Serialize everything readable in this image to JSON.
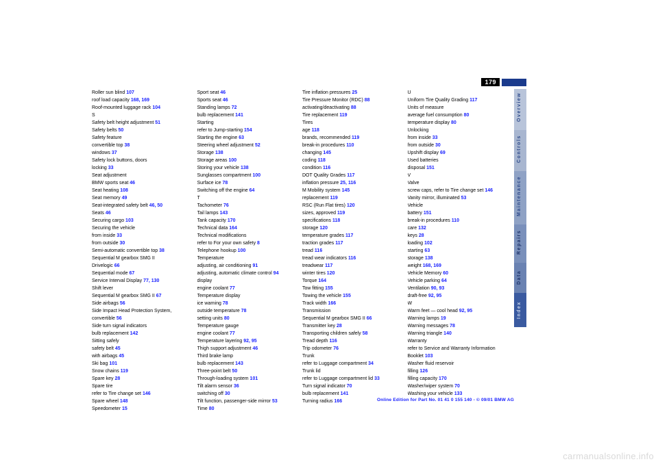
{
  "page_number": "179",
  "footer": "Online Edition for Part No. 01 41 0 155 140 - © 09/01 BMW AG",
  "watermark": "carmanualsonline.info",
  "tabs": [
    {
      "label": "Overview",
      "cls": "t-over"
    },
    {
      "label": "Controls",
      "cls": "t-ctrl"
    },
    {
      "label": "Maintenance",
      "cls": "t-maint"
    },
    {
      "label": "Repairs",
      "cls": "t-rep"
    },
    {
      "label": "Data",
      "cls": "t-data"
    },
    {
      "label": "Index",
      "cls": "t-idx"
    }
  ],
  "columns": [
    [
      {
        "l": "Roller sun blind",
        "n": "107"
      },
      {
        "l": "roof load capacity",
        "n": "168, 169"
      },
      {
        "l": "Roof-mounted luggage rack",
        "n": "104"
      },
      {
        "l": "",
        "n": ""
      },
      {
        "l": "S",
        "n": ""
      },
      {
        "l": "Safety belt height adjustment",
        "n": "51"
      },
      {
        "l": "Safety belts",
        "n": "50"
      },
      {
        "l": "Safety feature",
        "n": ""
      },
      {
        "l": "    convertible top",
        "n": "38"
      },
      {
        "l": "    windows",
        "n": "37"
      },
      {
        "l": "Safety lock buttons, doors",
        "n": ""
      },
      {
        "l": "    locking",
        "n": "33"
      },
      {
        "l": "Seat adjustment",
        "n": ""
      },
      {
        "l": "    BMW sports seat",
        "n": "46"
      },
      {
        "l": "Seat heating",
        "n": "108"
      },
      {
        "l": "Seat memory",
        "n": "49"
      },
      {
        "l": "Seat-integrated safety belt",
        "n": "46, 50"
      },
      {
        "l": "Seats",
        "n": "46"
      },
      {
        "l": "Securing cargo",
        "n": "103"
      },
      {
        "l": "Securing the vehicle",
        "n": ""
      },
      {
        "l": "    from inside",
        "n": "33"
      },
      {
        "l": "    from outside",
        "n": "30"
      },
      {
        "l": "Semi-automatic convertible top",
        "n": "38"
      },
      {
        "l": "Sequential M gearbox SMG II",
        "n": ""
      },
      {
        "l": "    Drivelogic",
        "n": "66"
      },
      {
        "l": "Sequential mode",
        "n": "67"
      },
      {
        "l": "Service Interval Display",
        "n": "77, 130"
      },
      {
        "l": "Shift lever",
        "n": ""
      },
      {
        "l": "    Sequential M gearbox SMG II",
        "n": "67"
      },
      {
        "l": "Side airbags",
        "n": "56"
      },
      {
        "l": "Side Impact Head Protection System, convertible",
        "n": "56"
      },
      {
        "l": "Side turn signal indicators",
        "n": ""
      },
      {
        "l": "    bulb replacement",
        "n": "142"
      },
      {
        "l": "Sitting safely",
        "n": ""
      },
      {
        "l": "    safety belt",
        "n": "45"
      },
      {
        "l": "    with airbags",
        "n": "45"
      },
      {
        "l": "Ski bag",
        "n": "101"
      },
      {
        "l": "Snow chains",
        "n": "119"
      },
      {
        "l": "Spare key",
        "n": "28"
      },
      {
        "l": "Spare tire",
        "n": ""
      },
      {
        "l": "    refer to Tire change set",
        "n": "146"
      },
      {
        "l": "Spare wheel",
        "n": "148"
      },
      {
        "l": "Speedometer",
        "n": "15"
      }
    ],
    [
      {
        "l": "Sport seat",
        "n": "46"
      },
      {
        "l": "Sports seat",
        "n": "46"
      },
      {
        "l": "Standing lamps",
        "n": "72"
      },
      {
        "l": "    bulb replacement",
        "n": "141"
      },
      {
        "l": "Starting",
        "n": ""
      },
      {
        "l": "    refer to Jump-starting",
        "n": "154"
      },
      {
        "l": "Starting the engine",
        "n": "63"
      },
      {
        "l": "Steering wheel adjustment",
        "n": "52"
      },
      {
        "l": "Storage",
        "n": "138"
      },
      {
        "l": "Storage areas",
        "n": "100"
      },
      {
        "l": "Storing your vehicle",
        "n": "138"
      },
      {
        "l": "Sunglasses compartment",
        "n": "100"
      },
      {
        "l": "Surface ice",
        "n": "78"
      },
      {
        "l": "Switching off the engine",
        "n": "64"
      },
      {
        "l": "",
        "n": ""
      },
      {
        "l": "T",
        "n": ""
      },
      {
        "l": "Tachometer",
        "n": "76"
      },
      {
        "l": "Tail lamps",
        "n": "143"
      },
      {
        "l": "Tank capacity",
        "n": "170"
      },
      {
        "l": "Technical data",
        "n": "164"
      },
      {
        "l": "Technical modifications",
        "n": ""
      },
      {
        "l": "    refer to For your own safety",
        "n": "8"
      },
      {
        "l": "Telephone hookup",
        "n": "100"
      },
      {
        "l": "Temperature",
        "n": ""
      },
      {
        "l": "    adjusting, air conditioning",
        "n": "91"
      },
      {
        "l": "    adjusting, automatic climate control",
        "n": "94"
      },
      {
        "l": "    display",
        "n": ""
      },
      {
        "l": "    engine coolant",
        "n": "77"
      },
      {
        "l": "Temperature display",
        "n": ""
      },
      {
        "l": "    ice warning",
        "n": "78"
      },
      {
        "l": "    outside temperature",
        "n": "78"
      },
      {
        "l": "    setting units",
        "n": "80"
      },
      {
        "l": "Temperature gauge",
        "n": ""
      },
      {
        "l": "    engine coolant",
        "n": "77"
      },
      {
        "l": "Temperature layering",
        "n": "92, 95"
      },
      {
        "l": "Thigh support adjustment",
        "n": "46"
      },
      {
        "l": "Third brake lamp",
        "n": ""
      },
      {
        "l": "    bulb replacement",
        "n": "143"
      },
      {
        "l": "Three-point belt",
        "n": "50"
      },
      {
        "l": "Through-loading system",
        "n": "101"
      },
      {
        "l": "Tilt alarm sensor",
        "n": "36"
      },
      {
        "l": "    switching off",
        "n": "30"
      },
      {
        "l": "Tilt function, passenger-side mirror",
        "n": "53"
      },
      {
        "l": "Time",
        "n": "80"
      }
    ],
    [
      {
        "l": "Tire inflation pressures",
        "n": "25"
      },
      {
        "l": "Tire Pressure Monitor (RDC)",
        "n": "88"
      },
      {
        "l": "    activating/deactivating",
        "n": "88"
      },
      {
        "l": "Tire replacement",
        "n": "119"
      },
      {
        "l": "Tires",
        "n": ""
      },
      {
        "l": "    age",
        "n": "118"
      },
      {
        "l": "    brands, recommended",
        "n": "119"
      },
      {
        "l": "    break-in procedures",
        "n": "110"
      },
      {
        "l": "    changing",
        "n": "145"
      },
      {
        "l": "    coding",
        "n": "118"
      },
      {
        "l": "    condition",
        "n": "116"
      },
      {
        "l": "    DOT Quality Grades",
        "n": "117"
      },
      {
        "l": "    inflation pressure",
        "n": "25, 116"
      },
      {
        "l": "    M Mobility system",
        "n": "145"
      },
      {
        "l": "    replacement",
        "n": "119"
      },
      {
        "l": "    RSC (Run Flat tires)",
        "n": "120"
      },
      {
        "l": "    sizes, approved",
        "n": "119"
      },
      {
        "l": "    specifications",
        "n": "118"
      },
      {
        "l": "    storage",
        "n": "120"
      },
      {
        "l": "    temperature grades",
        "n": "117"
      },
      {
        "l": "    traction grades",
        "n": "117"
      },
      {
        "l": "    tread",
        "n": "116"
      },
      {
        "l": "    tread wear indicators",
        "n": "116"
      },
      {
        "l": "    treadwear",
        "n": "117"
      },
      {
        "l": "    winter tires",
        "n": "120"
      },
      {
        "l": "Torque",
        "n": "164"
      },
      {
        "l": "Tow fitting",
        "n": "155"
      },
      {
        "l": "Towing the vehicle",
        "n": "155"
      },
      {
        "l": "Track width",
        "n": "166"
      },
      {
        "l": "Transmission",
        "n": ""
      },
      {
        "l": "    Sequential M gearbox SMG II",
        "n": "66"
      },
      {
        "l": "Transmitter key",
        "n": "28"
      },
      {
        "l": "Transporting children safely",
        "n": "58"
      },
      {
        "l": "Tread depth",
        "n": "116"
      },
      {
        "l": "Trip odometer",
        "n": "76"
      },
      {
        "l": "Trunk",
        "n": ""
      },
      {
        "l": "    refer to Luggage compartment",
        "n": "34"
      },
      {
        "l": "Trunk lid",
        "n": ""
      },
      {
        "l": "    refer to Luggage compartment lid",
        "n": "33"
      },
      {
        "l": "Turn signal indicator",
        "n": "70"
      },
      {
        "l": "    bulb replacement",
        "n": "141"
      },
      {
        "l": "Turning radius",
        "n": "166"
      }
    ],
    [
      {
        "l": "U",
        "n": ""
      },
      {
        "l": "Uniform Tire Quality Grading",
        "n": "117"
      },
      {
        "l": "Units of measure",
        "n": ""
      },
      {
        "l": "    average fuel consumption",
        "n": "80"
      },
      {
        "l": "    temperature display",
        "n": "80"
      },
      {
        "l": "Unlocking",
        "n": ""
      },
      {
        "l": "    from inside",
        "n": "33"
      },
      {
        "l": "    from outside",
        "n": "30"
      },
      {
        "l": "Upshift display",
        "n": "69"
      },
      {
        "l": "Used batteries",
        "n": ""
      },
      {
        "l": "    disposal",
        "n": "151"
      },
      {
        "l": "",
        "n": ""
      },
      {
        "l": "V",
        "n": ""
      },
      {
        "l": "Valve",
        "n": ""
      },
      {
        "l": "    screw caps, refer to Tire change set",
        "n": "146"
      },
      {
        "l": "Vanity mirror, illuminated",
        "n": "53"
      },
      {
        "l": "Vehicle",
        "n": ""
      },
      {
        "l": "    battery",
        "n": "151"
      },
      {
        "l": "    break-in procedures",
        "n": "110"
      },
      {
        "l": "    care",
        "n": "132"
      },
      {
        "l": "    keys",
        "n": "28"
      },
      {
        "l": "    loading",
        "n": "102"
      },
      {
        "l": "    starting",
        "n": "63"
      },
      {
        "l": "    storage",
        "n": "138"
      },
      {
        "l": "    weight",
        "n": "168, 169"
      },
      {
        "l": "Vehicle Memory",
        "n": "60"
      },
      {
        "l": "Vehicle parking",
        "n": "64"
      },
      {
        "l": "Ventilation",
        "n": "90, 93"
      },
      {
        "l": "    draft-free",
        "n": "92, 95"
      },
      {
        "l": "",
        "n": ""
      },
      {
        "l": "W",
        "n": ""
      },
      {
        "l": "Warm feet — cool head",
        "n": "92, 95"
      },
      {
        "l": "Warning lamps",
        "n": "19"
      },
      {
        "l": "Warning messages",
        "n": "78"
      },
      {
        "l": "Warning triangle",
        "n": "140"
      },
      {
        "l": "Warranty",
        "n": ""
      },
      {
        "l": "    refer to Service and Warranty Information Booklet",
        "n": "103"
      },
      {
        "l": "Washer fluid reservoir",
        "n": ""
      },
      {
        "l": "    filling",
        "n": "126"
      },
      {
        "l": "    filling capacity",
        "n": "170"
      },
      {
        "l": "Washer/wiper system",
        "n": "70"
      },
      {
        "l": "Washing your vehicle",
        "n": "133"
      }
    ]
  ]
}
